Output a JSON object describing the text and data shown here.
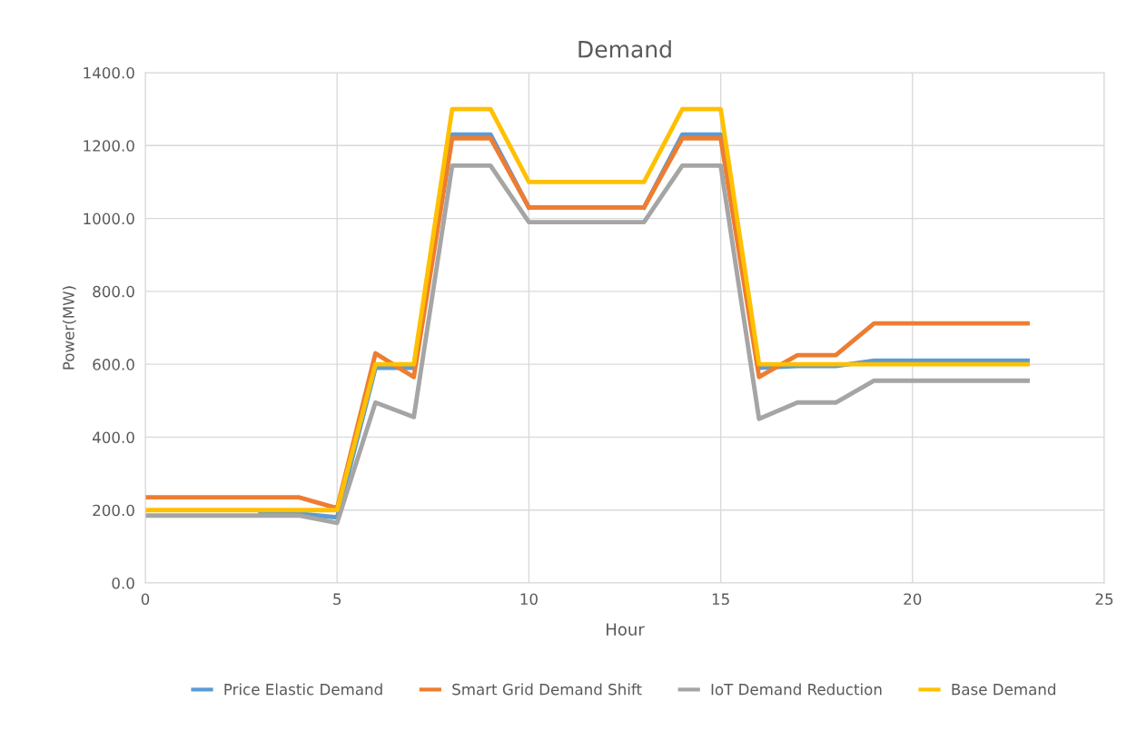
{
  "chart_data": {
    "type": "line",
    "title": "Demand",
    "xlabel": "Hour",
    "ylabel": "Power(MW)",
    "x": [
      0,
      1,
      2,
      3,
      4,
      5,
      6,
      7,
      8,
      9,
      10,
      11,
      12,
      13,
      14,
      15,
      16,
      17,
      18,
      19,
      20,
      21,
      22,
      23
    ],
    "xlim": [
      0,
      25
    ],
    "xticks": [
      0,
      5,
      10,
      15,
      20,
      25
    ],
    "ylim": [
      0,
      1400
    ],
    "yticks": [
      {
        "value": 0,
        "label": "0.0"
      },
      {
        "value": 200,
        "label": "200.0"
      },
      {
        "value": 400,
        "label": "400.0"
      },
      {
        "value": 600,
        "label": "600.0"
      },
      {
        "value": 800,
        "label": "800.0"
      },
      {
        "value": 1000,
        "label": "1000.0"
      },
      {
        "value": 1200,
        "label": "1200.0"
      },
      {
        "value": 1400,
        "label": "1400.0"
      }
    ],
    "grid": true,
    "legend": "bottom",
    "marker": "none",
    "line_style": "solid",
    "series": [
      {
        "name": "Price Elastic Demand",
        "color": "#5b9bd5",
        "values": [
          null,
          null,
          null,
          190,
          190,
          180,
          590,
          590,
          1230,
          1230,
          1030,
          null,
          null,
          1030,
          1230,
          1230,
          590,
          595,
          595,
          610,
          610,
          610,
          610,
          610
        ]
      },
      {
        "name": "Smart Grid Demand Shift",
        "color": "#ed7d31",
        "values": [
          235,
          235,
          235,
          235,
          235,
          205,
          630,
          565,
          1220,
          1220,
          1030,
          1030,
          1030,
          1030,
          1220,
          1220,
          565,
          625,
          625,
          712,
          712,
          712,
          712,
          712
        ]
      },
      {
        "name": "IoT Demand Reduction",
        "color": "#a5a5a5",
        "values": [
          185,
          185,
          185,
          185,
          185,
          165,
          495,
          455,
          1145,
          1145,
          990,
          990,
          990,
          990,
          1145,
          1145,
          450,
          495,
          495,
          555,
          555,
          555,
          555,
          555
        ]
      },
      {
        "name": "Base Demand",
        "color": "#ffc000",
        "values": [
          200,
          200,
          200,
          200,
          200,
          200,
          600,
          600,
          1300,
          1300,
          1100,
          1100,
          1100,
          1100,
          1300,
          1300,
          600,
          600,
          600,
          600,
          600,
          600,
          600,
          600
        ]
      }
    ]
  }
}
